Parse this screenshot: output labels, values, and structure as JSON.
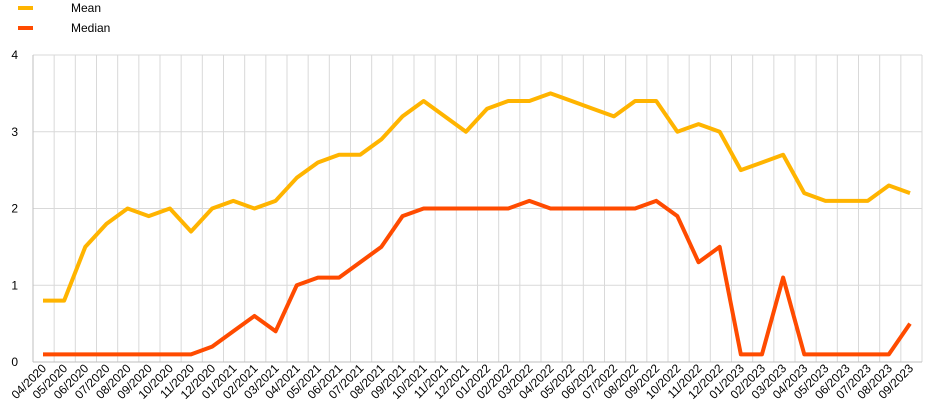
{
  "chart_data": {
    "type": "line",
    "categories": [
      "04/2020",
      "05/2020",
      "06/2020",
      "07/2020",
      "08/2020",
      "09/2020",
      "10/2020",
      "11/2020",
      "12/2020",
      "01/2021",
      "02/2021",
      "03/2021",
      "04/2021",
      "05/2021",
      "06/2021",
      "07/2021",
      "08/2021",
      "09/2021",
      "10/2021",
      "11/2021",
      "12/2021",
      "01/2022",
      "02/2022",
      "03/2022",
      "04/2022",
      "05/2022",
      "06/2022",
      "07/2022",
      "08/2022",
      "09/2022",
      "10/2022",
      "11/2022",
      "12/2022",
      "01/2023",
      "02/2023",
      "03/2023",
      "04/2023",
      "05/2023",
      "06/2023",
      "07/2023",
      "08/2023",
      "09/2023"
    ],
    "series": [
      {
        "name": "Mean",
        "color": "#FFB400",
        "x": [
          0,
          1,
          2,
          3,
          4,
          5,
          6,
          7,
          8,
          9,
          10,
          11,
          12,
          13,
          14,
          15,
          16,
          17,
          18,
          19,
          20,
          21,
          22,
          23,
          24,
          25,
          26,
          27,
          28,
          29,
          30,
          31,
          32,
          33,
          34,
          35,
          36,
          37,
          38,
          39,
          40,
          41
        ],
        "values": [
          0.8,
          0.8,
          1.5,
          1.8,
          2.0,
          1.9,
          2.0,
          1.7,
          2.0,
          2.1,
          2.0,
          2.1,
          2.4,
          2.6,
          2.7,
          2.7,
          2.9,
          3.2,
          3.4,
          3.2,
          3.0,
          3.3,
          3.4,
          3.4,
          3.5,
          3.4,
          3.3,
          3.2,
          3.4,
          3.4,
          3.0,
          3.1,
          3.0,
          2.5,
          2.6,
          2.7,
          2.2,
          2.1,
          2.1,
          2.1,
          2.3,
          2.2
        ]
      },
      {
        "name": "Median",
        "color": "#FF4B00",
        "x": [
          0,
          1,
          2,
          3,
          4,
          5,
          6,
          7,
          8,
          9,
          10,
          11,
          12,
          13,
          14,
          15,
          16,
          17,
          18,
          19,
          20,
          21,
          22,
          23,
          24,
          25,
          26,
          27,
          28,
          29,
          30,
          31,
          32,
          33,
          34,
          35,
          36,
          37,
          38,
          39,
          40,
          41
        ],
        "values": [
          0.1,
          0.1,
          0.1,
          0.1,
          0.1,
          0.1,
          0.1,
          0.1,
          0.2,
          0.4,
          0.6,
          0.4,
          1.0,
          1.1,
          1.1,
          1.3,
          1.5,
          1.9,
          2.0,
          2.0,
          2.0,
          2.0,
          2.0,
          2.1,
          2.0,
          2.0,
          2.0,
          2.0,
          2.0,
          2.1,
          1.9,
          1.3,
          1.5,
          0.1,
          0.1,
          1.1,
          0.1,
          0.1,
          0.1,
          0.1,
          0.1,
          0.5
        ]
      }
    ],
    "yticks": [
      "0",
      "1",
      "2",
      "3",
      "4"
    ],
    "ylim": [
      0,
      4
    ],
    "grid": true,
    "legend": "top-left",
    "title": "",
    "xlabel": "",
    "ylabel": ""
  }
}
